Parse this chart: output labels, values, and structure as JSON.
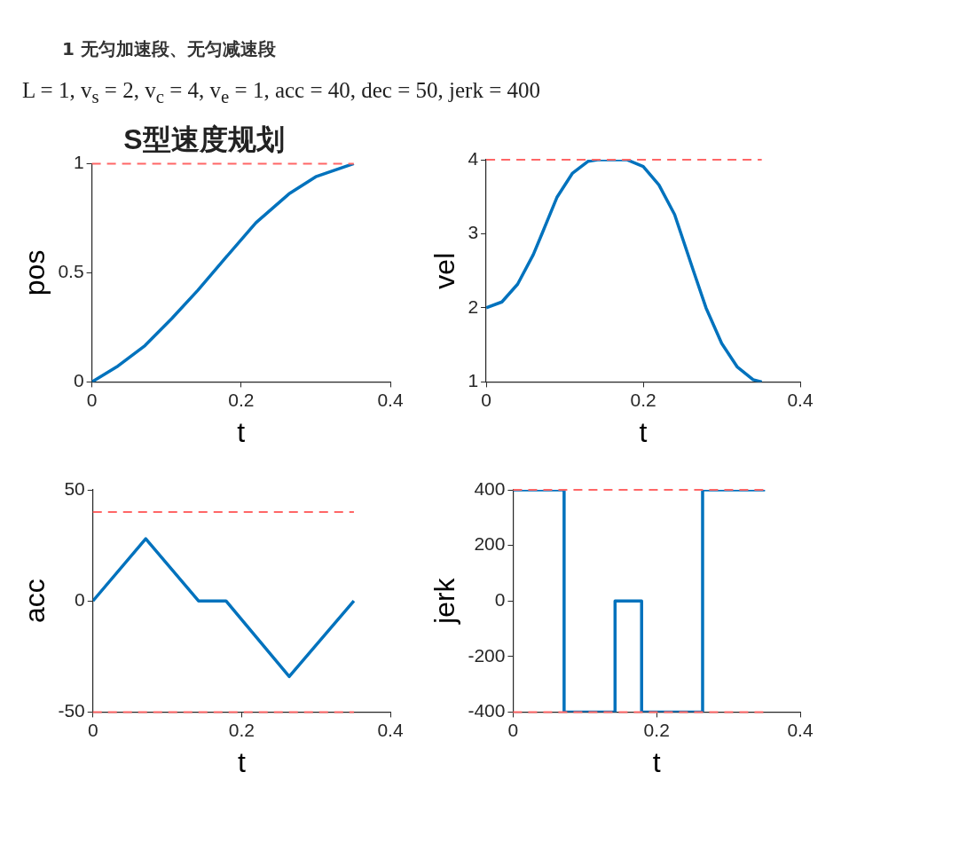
{
  "chart_data": [
    {
      "type": "line",
      "title": "S型速度规划",
      "annotations": [
        "1 无匀加速段、无匀减速段",
        "L = 1, v$_{s}$ = 2, v$_{c}$ = 4, v$_{e}$ = 1, acc = 40, dec = 50, jerk = 400"
      ],
      "xlabel": "t",
      "ylabel": "pos",
      "xlim": [
        0,
        0.4
      ],
      "xticks": [
        0,
        0.2,
        0.4
      ],
      "ylim": [
        0,
        1
      ],
      "yticks": [
        0,
        0.5,
        1
      ],
      "series": [
        {
          "color": "#0072bd",
          "x": [
            0,
            0.035,
            0.071,
            0.107,
            0.142,
            0.179,
            0.22,
            0.264,
            0.3,
            0.351
          ],
          "values": [
            0,
            0.073,
            0.166,
            0.29,
            0.42,
            0.568,
            0.73,
            0.861,
            0.94,
            1.0
          ]
        }
      ],
      "ref_lines": [
        {
          "axis": "y",
          "value": 1,
          "color": "#ff6666",
          "line_style": "dashed"
        }
      ]
    },
    {
      "type": "line",
      "xlabel": "t",
      "ylabel": "vel",
      "xlim": [
        0,
        0.4
      ],
      "xticks": [
        0,
        0.2,
        0.4
      ],
      "ylim": [
        1,
        4
      ],
      "yticks": [
        1,
        2,
        3,
        4
      ],
      "series": [
        {
          "color": "#0072bd",
          "x": [
            0,
            0.02,
            0.04,
            0.06,
            0.071,
            0.09,
            0.11,
            0.13,
            0.142,
            0.179,
            0.2,
            0.22,
            0.24,
            0.264,
            0.28,
            0.3,
            0.32,
            0.34,
            0.351
          ],
          "values": [
            2,
            2.08,
            2.32,
            2.72,
            3.0,
            3.49,
            3.82,
            3.98,
            4.0,
            4.0,
            3.91,
            3.66,
            3.26,
            2.5,
            2.0,
            1.52,
            1.2,
            1.03,
            1.0
          ]
        }
      ],
      "ref_lines": [
        {
          "axis": "y",
          "value": 4,
          "color": "#ff6666",
          "line_style": "dashed"
        }
      ]
    },
    {
      "type": "line",
      "xlabel": "t",
      "ylabel": "acc",
      "xlim": [
        0,
        0.4
      ],
      "xticks": [
        0,
        0.2,
        0.4
      ],
      "ylim": [
        -50,
        50
      ],
      "yticks": [
        -50,
        0,
        50
      ],
      "series": [
        {
          "color": "#0072bd",
          "x": [
            0,
            0.071,
            0.142,
            0.179,
            0.264,
            0.351
          ],
          "values": [
            0,
            28,
            0,
            0,
            -34,
            0
          ]
        }
      ],
      "ref_lines": [
        {
          "axis": "y",
          "value": 40,
          "color": "#ff6666",
          "line_style": "dashed"
        },
        {
          "axis": "y",
          "value": -50,
          "color": "#ff6666",
          "line_style": "dashed"
        }
      ]
    },
    {
      "type": "line",
      "xlabel": "t",
      "ylabel": "jerk",
      "xlim": [
        0,
        0.4
      ],
      "xticks": [
        0,
        0.2,
        0.4
      ],
      "ylim": [
        -400,
        400
      ],
      "yticks": [
        -400,
        -200,
        0,
        200,
        400
      ],
      "series": [
        {
          "color": "#0072bd",
          "x": [
            0,
            0.071,
            0.071,
            0.142,
            0.142,
            0.179,
            0.179,
            0.264,
            0.264,
            0.351
          ],
          "values": [
            400,
            400,
            -400,
            -400,
            0,
            0,
            -400,
            -400,
            400,
            400
          ]
        }
      ],
      "ref_lines": [
        {
          "axis": "y",
          "value": 400,
          "color": "#ff6666",
          "line_style": "dashed"
        },
        {
          "axis": "y",
          "value": -400,
          "color": "#ff6666",
          "line_style": "dashed"
        }
      ]
    }
  ]
}
